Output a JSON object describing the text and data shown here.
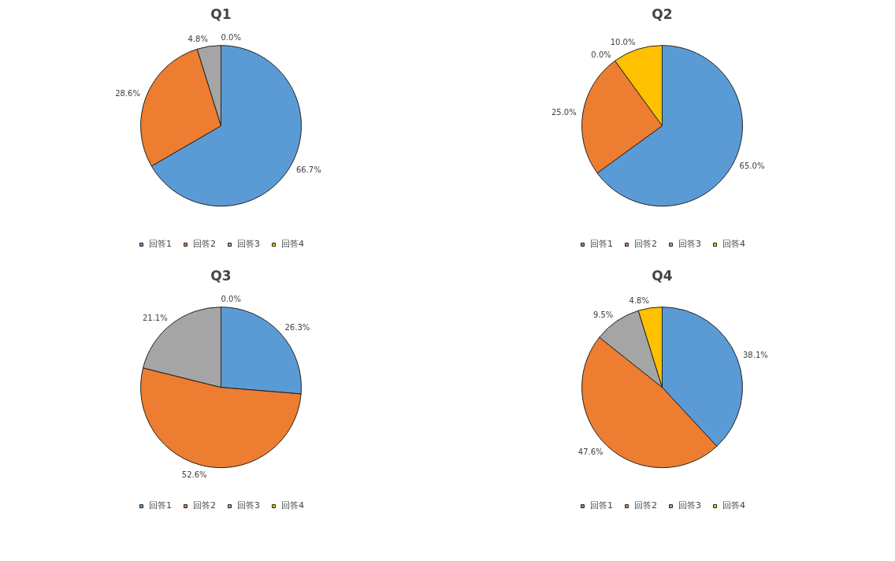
{
  "chart_data": [
    {
      "type": "pie",
      "title": "Q1",
      "categories": [
        "回答1",
        "回答2",
        "回答3",
        "回答4"
      ],
      "values": [
        66.7,
        28.6,
        4.8,
        0.0
      ],
      "colors": [
        "#5b9bd5",
        "#ed7d31",
        "#a5a5a5",
        "#ffc000"
      ],
      "value_labels": [
        "66.7%",
        "28.6%",
        "4.8%",
        "0.0%"
      ],
      "legend": "bottom"
    },
    {
      "type": "pie",
      "title": "Q2",
      "categories": [
        "回答1",
        "回答2",
        "回答3",
        "回答4"
      ],
      "values": [
        65.0,
        25.0,
        0.0,
        10.0
      ],
      "colors": [
        "#5b9bd5",
        "#ed7d31",
        "#a5a5a5",
        "#ffc000"
      ],
      "value_labels": [
        "65.0%",
        "25.0%",
        "0.0%",
        "10.0%"
      ],
      "legend": "bottom"
    },
    {
      "type": "pie",
      "title": "Q3",
      "categories": [
        "回答1",
        "回答2",
        "回答3",
        "回答4"
      ],
      "values": [
        26.3,
        52.6,
        21.1,
        0.0
      ],
      "colors": [
        "#5b9bd5",
        "#ed7d31",
        "#a5a5a5",
        "#ffc000"
      ],
      "value_labels": [
        "26.3%",
        "52.6%",
        "21.1%",
        "0.0%"
      ],
      "legend": "bottom"
    },
    {
      "type": "pie",
      "title": "Q4",
      "categories": [
        "回答1",
        "回答2",
        "回答3",
        "回答4"
      ],
      "values": [
        38.1,
        47.6,
        9.5,
        4.8
      ],
      "colors": [
        "#5b9bd5",
        "#ed7d31",
        "#a5a5a5",
        "#ffc000"
      ],
      "value_labels": [
        "38.1%",
        "47.6%",
        "9.5%",
        "4.8%"
      ],
      "legend": "bottom"
    }
  ]
}
